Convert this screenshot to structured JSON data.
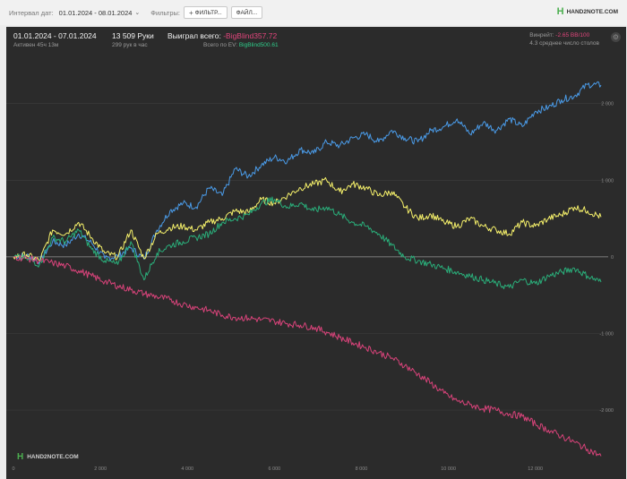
{
  "toolbar": {
    "date_label": "Интервал дат:",
    "date_value": "01.01.2024 - 08.01.2024",
    "filters_label": "Фильтры:",
    "filter_button": "ФИЛЬТР...",
    "file_button": "ФАЙЛ...",
    "logo_text": "HAND2NOTE.COM"
  },
  "header": {
    "period": "01.01.2024 - 07.01.2024",
    "active": "Активен 45ч 13м",
    "hands": "13 509 Руки",
    "hands_per_hour": "299 рук в час",
    "won_label": "Выиграл всего:",
    "won_value": "-BigBlind357.72",
    "ev_label": "Всего по EV:",
    "ev_value": "BigBlind500.61",
    "winrate_label": "Винрейт:",
    "winrate_value": "-2.65 BB/100",
    "tables": "4.3 среднее число столов"
  },
  "watermark": "HAND2NOTE.COM",
  "colors": {
    "blue": "#4a9be8",
    "yellow": "#f5f06a",
    "green": "#2aae7a",
    "pink": "#d8437a",
    "panel": "#2b2b2b"
  },
  "chart_data": {
    "type": "line",
    "x_ticks": [
      "0",
      "2 000",
      "4 000",
      "6 000",
      "8 000",
      "10 000",
      "12 000"
    ],
    "x_tick_values": [
      0,
      2000,
      4000,
      6000,
      8000,
      10000,
      12000
    ],
    "y_ticks": [
      "2 000",
      "1 000",
      "0",
      "-1 000",
      "-2 000"
    ],
    "y_tick_values": [
      2000,
      1000,
      0,
      -1000,
      -2000
    ],
    "xlim": [
      0,
      13509
    ],
    "ylim": [
      -2700,
      2300
    ],
    "grid": true,
    "series": [
      {
        "color": "blue",
        "x": [
          0,
          300,
          600,
          900,
          1200,
          1500,
          1800,
          2100,
          2400,
          2700,
          3000,
          3300,
          3600,
          3900,
          4200,
          4500,
          4800,
          5100,
          5400,
          5700,
          6000,
          6300,
          6600,
          6900,
          7200,
          7500,
          7800,
          8100,
          8400,
          8700,
          9000,
          9300,
          9600,
          9900,
          10200,
          10500,
          10800,
          11100,
          11400,
          11700,
          12000,
          12300,
          12600,
          12900,
          13200,
          13509
        ],
        "y": [
          0,
          20,
          -60,
          200,
          150,
          300,
          180,
          -20,
          10,
          120,
          -30,
          350,
          600,
          700,
          650,
          900,
          800,
          1150,
          1050,
          1200,
          1300,
          1250,
          1400,
          1350,
          1500,
          1450,
          1550,
          1600,
          1500,
          1650,
          1550,
          1500,
          1650,
          1700,
          1800,
          1600,
          1750,
          1650,
          1800,
          1700,
          1900,
          1950,
          2050,
          2100,
          2250,
          2240
        ]
      },
      {
        "color": "yellow",
        "x": [
          0,
          300,
          600,
          900,
          1200,
          1500,
          1800,
          2100,
          2400,
          2700,
          3000,
          3300,
          3600,
          3900,
          4200,
          4500,
          4800,
          5100,
          5400,
          5700,
          6000,
          6300,
          6600,
          6900,
          7200,
          7500,
          7800,
          8100,
          8400,
          8700,
          9000,
          9300,
          9600,
          9900,
          10200,
          10500,
          10800,
          11100,
          11400,
          11700,
          12000,
          12300,
          12600,
          12900,
          13200,
          13509
        ],
        "y": [
          0,
          30,
          -50,
          350,
          300,
          450,
          250,
          50,
          0,
          350,
          -20,
          300,
          380,
          400,
          350,
          450,
          500,
          600,
          580,
          750,
          700,
          800,
          900,
          950,
          1000,
          850,
          950,
          900,
          800,
          850,
          650,
          500,
          550,
          450,
          400,
          500,
          400,
          350,
          300,
          450,
          400,
          500,
          550,
          650,
          600,
          520
        ]
      },
      {
        "color": "green",
        "x": [
          0,
          300,
          600,
          900,
          1200,
          1500,
          1800,
          2100,
          2400,
          2700,
          3000,
          3300,
          3600,
          3900,
          4200,
          4500,
          4800,
          5100,
          5400,
          5700,
          6000,
          6300,
          6600,
          6900,
          7200,
          7500,
          7800,
          8100,
          8400,
          8700,
          9000,
          9300,
          9600,
          9900,
          10200,
          10500,
          10800,
          11100,
          11400,
          11700,
          12000,
          12300,
          12600,
          12900,
          13200,
          13509
        ],
        "y": [
          0,
          -20,
          -100,
          250,
          200,
          350,
          100,
          -50,
          -100,
          200,
          -300,
          50,
          150,
          200,
          250,
          300,
          450,
          500,
          550,
          700,
          750,
          650,
          700,
          600,
          650,
          550,
          450,
          400,
          300,
          150,
          0,
          -50,
          -100,
          -150,
          -200,
          -250,
          -300,
          -350,
          -400,
          -300,
          -350,
          -250,
          -200,
          -150,
          -250,
          -330
        ]
      },
      {
        "color": "pink",
        "x": [
          0,
          300,
          600,
          900,
          1200,
          1500,
          1800,
          2100,
          2400,
          2700,
          3000,
          3300,
          3600,
          3900,
          4200,
          4500,
          4800,
          5100,
          5400,
          5700,
          6000,
          6300,
          6600,
          6900,
          7200,
          7500,
          7800,
          8100,
          8400,
          8700,
          9000,
          9300,
          9600,
          9900,
          10200,
          10500,
          10800,
          11100,
          11400,
          11700,
          12000,
          12300,
          12600,
          12900,
          13200,
          13509
        ],
        "y": [
          0,
          -20,
          -50,
          -80,
          -120,
          -180,
          -250,
          -320,
          -380,
          -430,
          -480,
          -520,
          -560,
          -620,
          -660,
          -700,
          -760,
          -790,
          -800,
          -820,
          -840,
          -870,
          -890,
          -920,
          -980,
          -1050,
          -1120,
          -1180,
          -1250,
          -1320,
          -1420,
          -1530,
          -1650,
          -1780,
          -1880,
          -1930,
          -1980,
          -2000,
          -2050,
          -2080,
          -2180,
          -2260,
          -2340,
          -2420,
          -2510,
          -2600
        ]
      }
    ]
  }
}
